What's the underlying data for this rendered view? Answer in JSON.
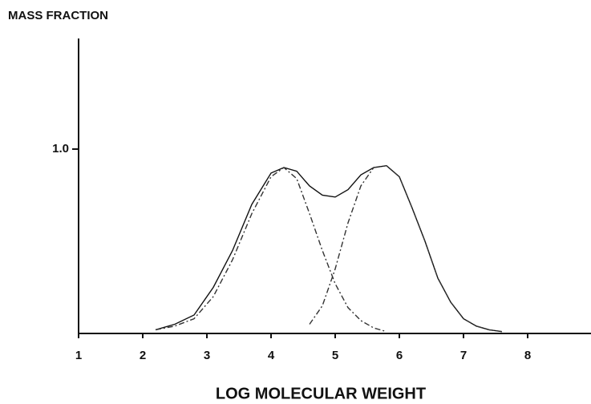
{
  "chart_data": {
    "type": "line",
    "y_label": "MASS FRACTION",
    "x_label": "LOG MOLECULAR WEIGHT",
    "x": [
      2.2,
      2.5,
      2.8,
      3.1,
      3.4,
      3.7,
      4.0,
      4.2,
      4.4,
      4.6,
      4.8,
      5.0,
      5.2,
      5.4,
      5.6,
      5.8,
      6.0,
      6.2,
      6.4,
      6.6,
      6.8,
      7.0,
      7.2,
      7.4,
      7.6
    ],
    "series": [
      {
        "color": "#111111",
        "style": "solid",
        "values": [
          0.02,
          0.05,
          0.1,
          0.25,
          0.45,
          0.7,
          0.87,
          0.9,
          0.88,
          0.8,
          0.75,
          0.74,
          0.78,
          0.86,
          0.9,
          0.91,
          0.85,
          0.68,
          0.5,
          0.3,
          0.17,
          0.08,
          0.04,
          0.02,
          0.01
        ]
      },
      {
        "color": "#333333",
        "style": "dashed",
        "values": [
          0.02,
          0.04,
          0.08,
          0.2,
          0.4,
          0.65,
          0.85,
          0.9,
          0.84,
          0.65,
          0.45,
          0.27,
          0.14,
          0.07,
          0.03,
          0.01,
          null,
          null,
          null,
          null,
          null,
          null,
          null,
          null,
          null
        ]
      },
      {
        "color": "#333333",
        "style": "dashed",
        "values": [
          null,
          null,
          null,
          null,
          null,
          null,
          null,
          null,
          null,
          0.05,
          0.15,
          0.35,
          0.6,
          0.8,
          0.9,
          0.91,
          0.85,
          0.68,
          0.5,
          0.3,
          0.17,
          0.08,
          0.04,
          0.02,
          0.01
        ]
      }
    ],
    "xlim": [
      1,
      9
    ],
    "xticks": [
      1,
      2,
      3,
      4,
      5,
      6,
      7,
      8
    ],
    "ylim": [
      0,
      1.6
    ],
    "yticks": [
      {
        "value": 1,
        "label": "1.0"
      }
    ]
  }
}
